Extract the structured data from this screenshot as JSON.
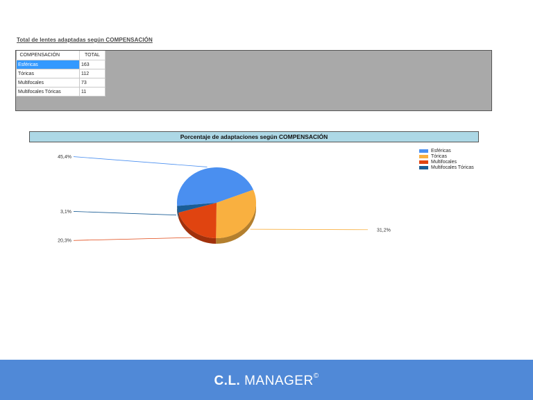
{
  "report": {
    "title": "Total de lentes adaptadas según COMPENSACIÓN"
  },
  "grid": {
    "columns": [
      "COMPENSACIÓN",
      "TOTAL"
    ],
    "rows": [
      {
        "label": "Esféricas",
        "total": "163"
      },
      {
        "label": "Tóricas",
        "total": "112"
      },
      {
        "label": "Multifocales",
        "total": "73"
      },
      {
        "label": "Multifocales Tóricas",
        "total": "11"
      }
    ],
    "selected_row": 0,
    "selection_color": "#3399ff"
  },
  "chart_data": {
    "type": "pie",
    "title": "Porcentaje de adaptaciones según COMPENSACIÓN",
    "categories": [
      "Esféricas",
      "Tóricas",
      "Multifocales",
      "Multifocales Tóricas"
    ],
    "values": [
      163,
      112,
      73,
      11
    ],
    "labels": [
      "45,4%",
      "31,2%",
      "20,3%",
      "3,1%"
    ],
    "colors": [
      "#4a8ff0",
      "#f9b040",
      "#e04410",
      "#1a5d96"
    ],
    "legend_position": "top-right",
    "style": "3d"
  },
  "footer": {
    "brand_cl": "C.L.",
    "brand_name": " MANAGER",
    "brand_mark": "©",
    "background": "#5089d7"
  }
}
